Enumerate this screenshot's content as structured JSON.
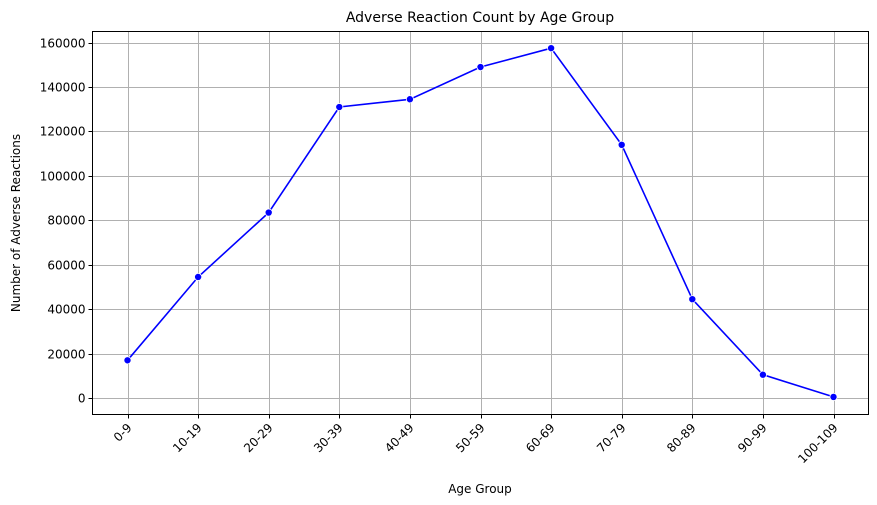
{
  "chart_data": {
    "type": "line",
    "title": "Adverse Reaction Count by Age Group",
    "xlabel": "Age Group",
    "ylabel": "Number of Adverse Reactions",
    "categories": [
      "0-9",
      "10-19",
      "20-29",
      "30-39",
      "40-49",
      "50-59",
      "60-69",
      "70-79",
      "80-89",
      "90-99",
      "100-109"
    ],
    "series": [
      {
        "values": [
          17000,
          54500,
          83500,
          131000,
          134500,
          149000,
          157500,
          114000,
          44500,
          10500,
          500
        ],
        "color": "#0000ff"
      }
    ],
    "yticks": [
      0,
      20000,
      40000,
      60000,
      80000,
      100000,
      120000,
      140000,
      160000
    ],
    "ylim": [
      -7400,
      165000
    ],
    "grid": true,
    "legend": "none"
  }
}
